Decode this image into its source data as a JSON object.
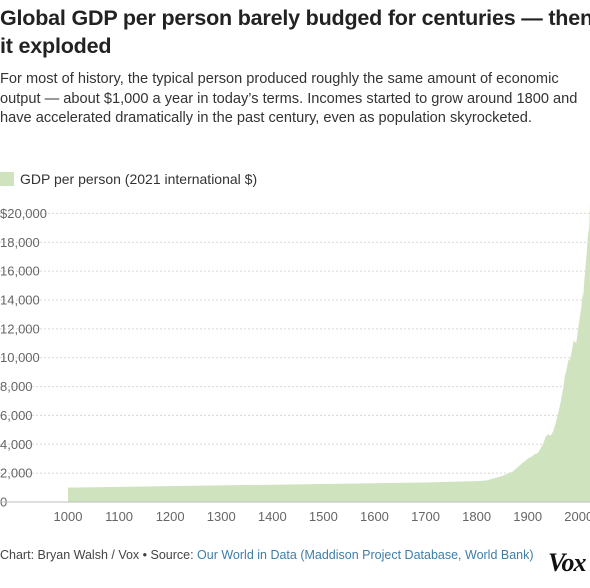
{
  "header": {
    "title": "Global GDP per person barely budged for centuries — then it exploded",
    "subtitle": "For most of history, the typical person produced roughly the same amount of economic output — about $1,000 a year in today’s terms. Incomes started to grow around 1800 and have accelerated dramatically in the past century, even as population skyrocketed."
  },
  "footer": {
    "credit": "Chart: Bryan Walsh / Vox • Source: ",
    "source_link": "Our World in Data (Maddison Project Database, World Bank)",
    "logo_text": "Vox"
  },
  "colors": {
    "area_fill": "#cfe3bf",
    "axis_text": "#666666",
    "link": "#3f7ea6"
  },
  "chart_data": {
    "type": "area",
    "title": "Global GDP per person barely budged for centuries — then it exploded",
    "series": [
      {
        "name": "GDP per person (2021 international $)",
        "x": [
          1000,
          1200,
          1400,
          1500,
          1600,
          1700,
          1750,
          1800,
          1820,
          1850,
          1870,
          1880,
          1890,
          1900,
          1910,
          1913,
          1920,
          1930,
          1935,
          1940,
          1945,
          1950,
          1955,
          1960,
          1965,
          1970,
          1973,
          1975,
          1980,
          1982,
          1985,
          1990,
          1995,
          2000,
          2005,
          2008,
          2009,
          2010,
          2015,
          2019,
          2020,
          2022
        ],
        "values": [
          1000,
          1100,
          1200,
          1250,
          1300,
          1350,
          1400,
          1450,
          1500,
          1800,
          2100,
          2400,
          2700,
          3000,
          3200,
          3300,
          3400,
          4000,
          4500,
          4700,
          4600,
          4900,
          5500,
          6200,
          7000,
          8000,
          8800,
          9000,
          9900,
          9800,
          10200,
          11200,
          11000,
          12300,
          13500,
          14500,
          14200,
          15000,
          17000,
          19000,
          18500,
          20700
        ]
      }
    ],
    "xlim": [
      1000,
      2022
    ],
    "ylim": [
      0,
      21000
    ],
    "xticks": [
      1000,
      1100,
      1200,
      1300,
      1400,
      1500,
      1600,
      1700,
      1800,
      1900,
      2000
    ],
    "xtick_labels": [
      "1000",
      "1100",
      "1200",
      "1300",
      "1400",
      "1500",
      "1600",
      "1700",
      "1800",
      "1900",
      "2000"
    ],
    "yticks": [
      0,
      2000,
      4000,
      6000,
      8000,
      10000,
      12000,
      14000,
      16000,
      18000,
      20000
    ],
    "ytick_labels": [
      "0",
      "2,000",
      "4,000",
      "6,000",
      "8,000",
      "10,000",
      "12,000",
      "14,000",
      "16,000",
      "18,000",
      "$20,000"
    ],
    "grid": "horizontal-dashed",
    "legend": "top-left"
  }
}
